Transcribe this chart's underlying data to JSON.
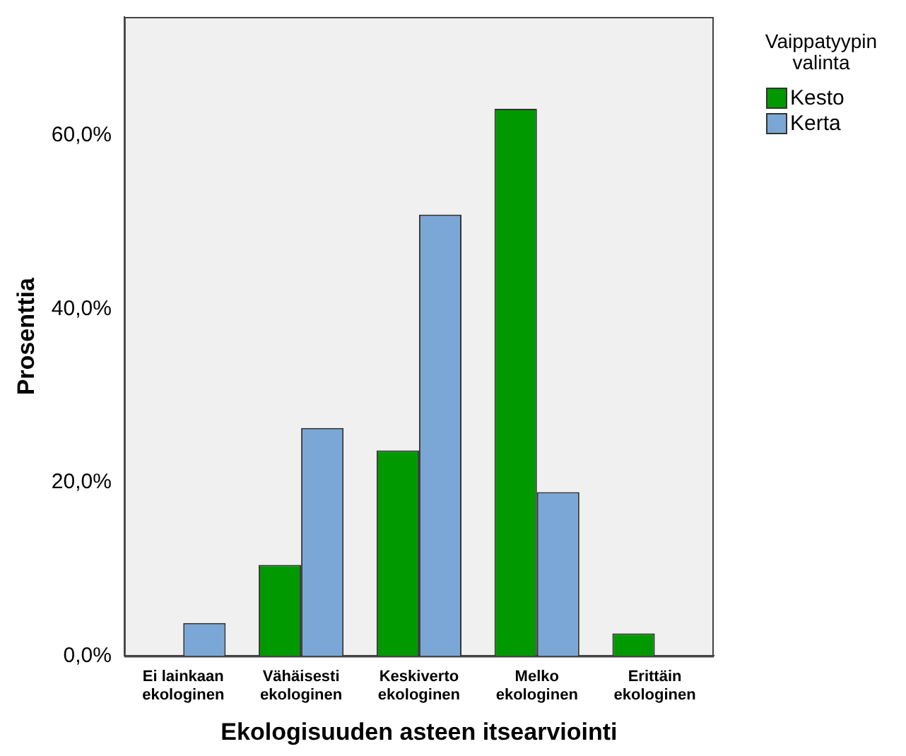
{
  "chart_data": {
    "type": "bar",
    "xlabel": "Ekologisuuden asteen itsearviointi",
    "ylabel": "Prosenttia",
    "legend_title": "Vaippatyypin valinta",
    "categories": [
      "Ei lainkaan ekologinen",
      "Vähäisesti ekologinen",
      "Keskiverto ekologinen",
      "Melko ekologinen",
      "Erittäin ekologinen"
    ],
    "series": [
      {
        "name": "Kesto",
        "color": "#009900",
        "values": [
          null,
          10.5,
          23.7,
          63.1,
          2.6
        ]
      },
      {
        "name": "Kerta",
        "color": "#7ba7d6",
        "values": [
          3.8,
          26.3,
          50.9,
          18.9,
          null
        ]
      }
    ],
    "ylim": [
      0,
      73.7
    ],
    "yticks": [
      {
        "value": 0,
        "label": "0,0%"
      },
      {
        "value": 20,
        "label": "20,0%"
      },
      {
        "value": 40,
        "label": "40,0%"
      },
      {
        "value": 60,
        "label": "60,0%"
      }
    ],
    "grid": false,
    "legend": "top right"
  }
}
